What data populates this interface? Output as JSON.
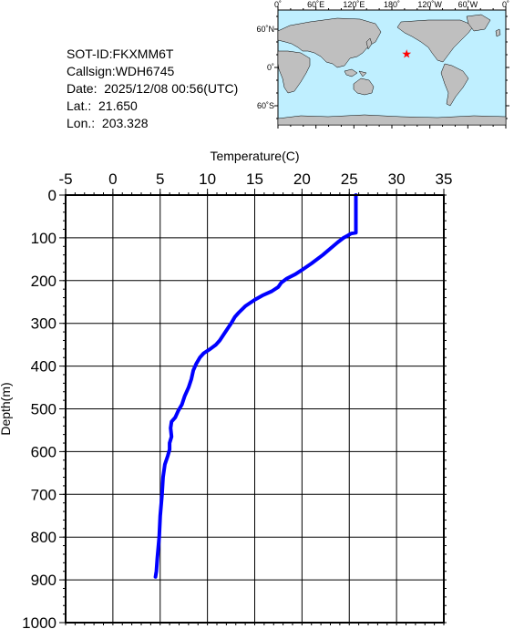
{
  "info": {
    "sot_id": "SOT-ID:FKXMM6T",
    "callsign": "Callsign:WDH6745",
    "date": "Date:  2025/12/08 00:56(UTC)",
    "lat": "Lat.:  21.650",
    "lon": "Lon.:  203.328"
  },
  "map": {
    "lon_labels": [
      "0˚",
      "60˚E",
      "120˚E",
      "180˚",
      "120˚W",
      "60˚W",
      "0˚"
    ],
    "lat_labels": [
      "60˚N",
      "0˚",
      "60˚S"
    ],
    "marker": {
      "lat": 21.65,
      "lon": 203.328
    },
    "ocean_color": "#bfefff",
    "land_color": "#bfbfbf",
    "marker_color": "#ff0000"
  },
  "chart_data": {
    "type": "line",
    "xlabel": "Temperature(C)",
    "ylabel": "Depth(m)",
    "xlim": [
      -5,
      35
    ],
    "ylim": [
      1000,
      0
    ],
    "x_ticks": [
      "-5",
      "0",
      "5",
      "10",
      "15",
      "20",
      "25",
      "30",
      "35"
    ],
    "y_ticks": [
      "0",
      "100",
      "200",
      "300",
      "400",
      "500",
      "600",
      "700",
      "800",
      "900",
      "1000"
    ],
    "grid": true,
    "series": [
      {
        "color": "#0000ff",
        "points": [
          [
            25.7,
            0
          ],
          [
            25.7,
            30
          ],
          [
            25.7,
            60
          ],
          [
            25.7,
            88
          ],
          [
            25.2,
            90
          ],
          [
            24.8,
            95
          ],
          [
            24.4,
            100
          ],
          [
            23.8,
            110
          ],
          [
            23.0,
            125
          ],
          [
            22.2,
            140
          ],
          [
            21.0,
            160
          ],
          [
            20.0,
            175
          ],
          [
            19.3,
            185
          ],
          [
            18.4,
            195
          ],
          [
            17.8,
            205
          ],
          [
            17.5,
            215
          ],
          [
            16.8,
            225
          ],
          [
            15.8,
            235
          ],
          [
            15.0,
            245
          ],
          [
            14.0,
            260
          ],
          [
            13.3,
            275
          ],
          [
            12.9,
            285
          ],
          [
            12.5,
            300
          ],
          [
            11.9,
            320
          ],
          [
            11.3,
            340
          ],
          [
            10.9,
            350
          ],
          [
            10.3,
            360
          ],
          [
            9.6,
            370
          ],
          [
            9.2,
            380
          ],
          [
            8.8,
            395
          ],
          [
            8.5,
            410
          ],
          [
            8.3,
            430
          ],
          [
            8.0,
            450
          ],
          [
            7.6,
            470
          ],
          [
            7.3,
            490
          ],
          [
            6.9,
            505
          ],
          [
            6.6,
            520
          ],
          [
            6.2,
            530
          ],
          [
            6.1,
            545
          ],
          [
            6.2,
            565
          ],
          [
            6.0,
            580
          ],
          [
            6.0,
            595
          ],
          [
            5.8,
            610
          ],
          [
            5.5,
            630
          ],
          [
            5.3,
            660
          ],
          [
            5.2,
            700
          ],
          [
            5.0,
            750
          ],
          [
            4.9,
            800
          ],
          [
            4.7,
            850
          ],
          [
            4.6,
            880
          ],
          [
            4.5,
            893
          ]
        ]
      }
    ]
  }
}
